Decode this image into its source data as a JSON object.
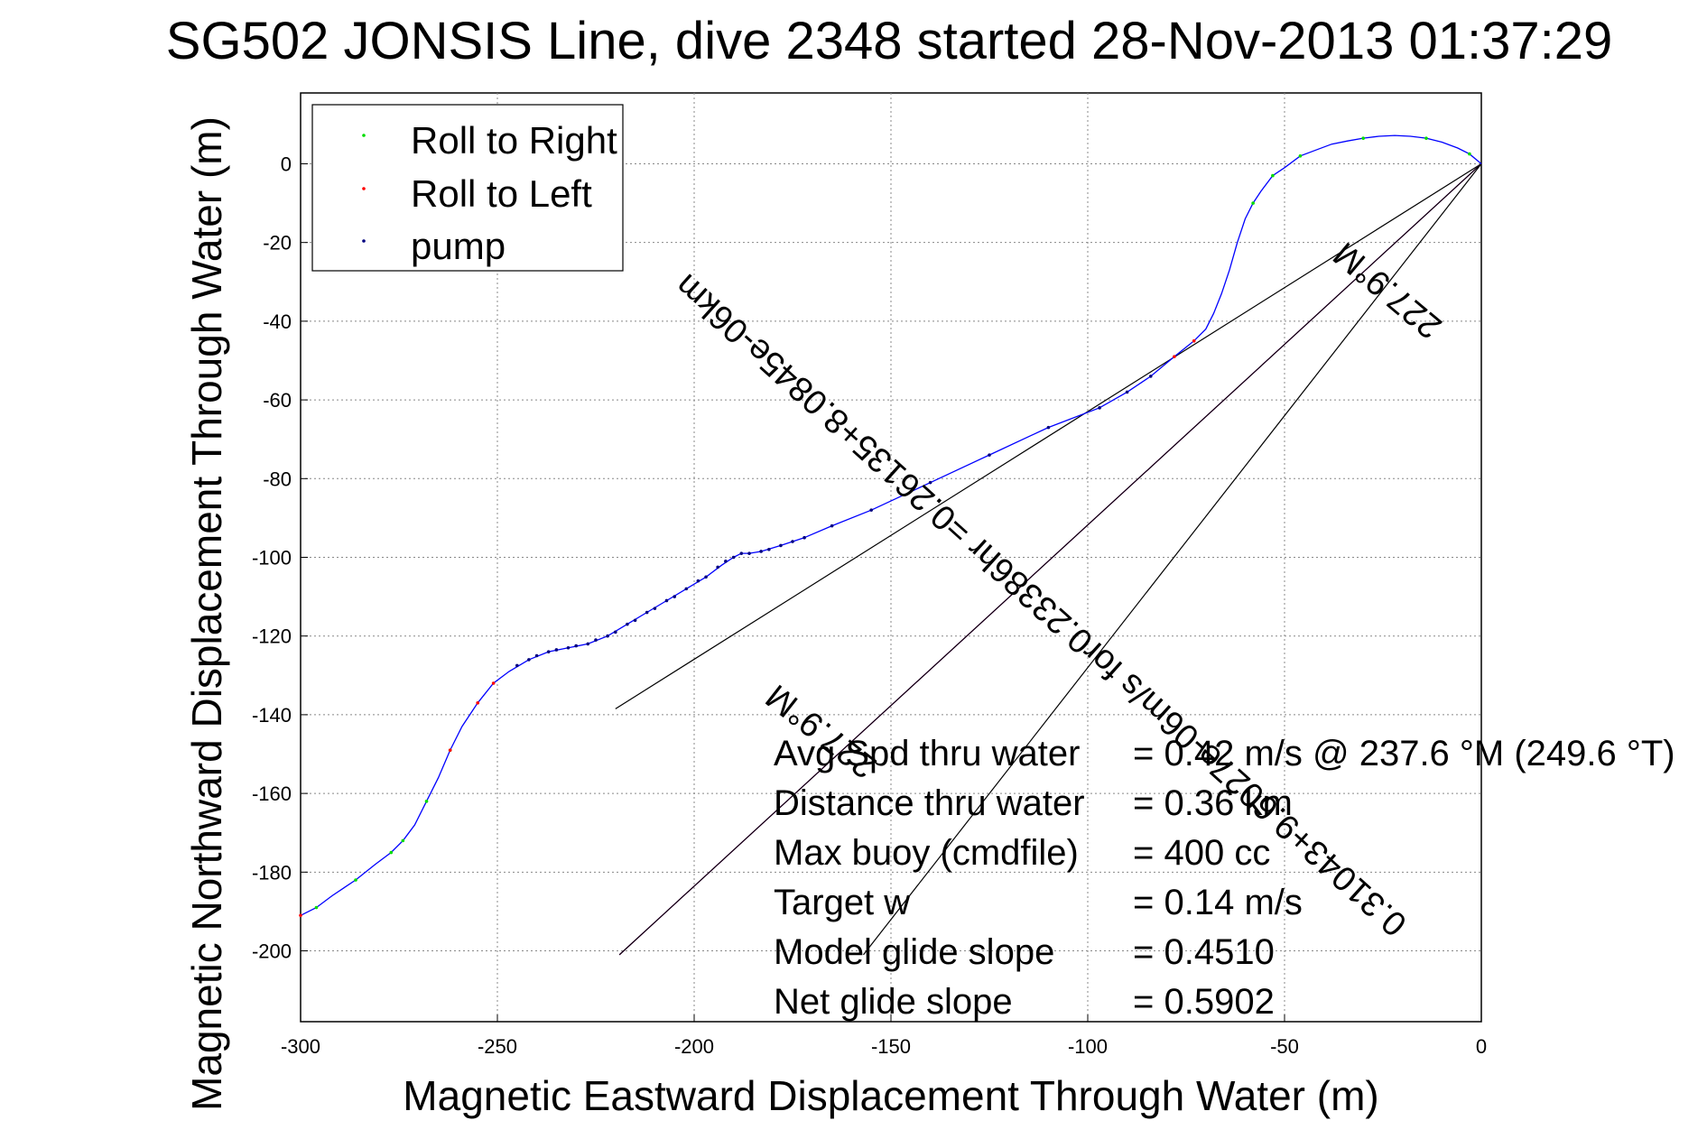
{
  "chart_data": {
    "type": "line",
    "title": "SG502 JONSIS Line, dive 2348 started 28-Nov-2013 01:37:29",
    "xlabel": "Magnetic Eastward Displacement Through Water (m)",
    "ylabel": "Magnetic Northward Displacement Through Water (m)",
    "xlim": [
      -300,
      0
    ],
    "ylim": [
      -218,
      18
    ],
    "xticks": [
      -300,
      -250,
      -200,
      -150,
      -100,
      -50,
      0
    ],
    "yticks": [
      0,
      -20,
      -40,
      -60,
      -80,
      -100,
      -120,
      -140,
      -160,
      -180,
      -200
    ],
    "grid": true,
    "legend": {
      "placement": "top-left",
      "entries": [
        {
          "label": "Roll to Right",
          "color": "#00dd00"
        },
        {
          "label": "Roll to Left",
          "color": "#ff0000"
        },
        {
          "label": "pump",
          "color": "#000080"
        }
      ]
    },
    "track": {
      "color": "#0000ff",
      "points": [
        [
          0,
          0
        ],
        [
          -3,
          2.5
        ],
        [
          -6,
          4
        ],
        [
          -10,
          5.5
        ],
        [
          -14,
          6.5
        ],
        [
          -18,
          7
        ],
        [
          -22,
          7.2
        ],
        [
          -26,
          7
        ],
        [
          -30,
          6.5
        ],
        [
          -34,
          5.8
        ],
        [
          -38,
          5
        ],
        [
          -42,
          3.5
        ],
        [
          -46,
          2
        ],
        [
          -50,
          -1
        ],
        [
          -53,
          -3
        ],
        [
          -56,
          -7
        ],
        [
          -58,
          -10
        ],
        [
          -60,
          -14
        ],
        [
          -62,
          -20
        ],
        [
          -64,
          -27
        ],
        [
          -66,
          -33
        ],
        [
          -68,
          -38
        ],
        [
          -70,
          -42
        ],
        [
          -73,
          -45
        ],
        [
          -78,
          -49
        ],
        [
          -84,
          -54
        ],
        [
          -90,
          -58
        ],
        [
          -97,
          -62
        ],
        [
          -110,
          -67
        ],
        [
          -125,
          -74
        ],
        [
          -140,
          -81
        ],
        [
          -155,
          -88
        ],
        [
          -165,
          -92
        ],
        [
          -172,
          -95
        ],
        [
          -178,
          -97
        ],
        [
          -183,
          -98.5
        ],
        [
          -186,
          -99
        ],
        [
          -188,
          -99
        ],
        [
          -190,
          -100
        ],
        [
          -193,
          -102
        ],
        [
          -197,
          -105
        ],
        [
          -202,
          -108
        ],
        [
          -207,
          -111
        ],
        [
          -212,
          -114
        ],
        [
          -217,
          -117
        ],
        [
          -222,
          -120
        ],
        [
          -227,
          -122
        ],
        [
          -232,
          -123
        ],
        [
          -237,
          -124
        ],
        [
          -242,
          -126
        ],
        [
          -247,
          -129
        ],
        [
          -251,
          -132
        ],
        [
          -255,
          -137
        ],
        [
          -259,
          -143
        ],
        [
          -262,
          -149
        ],
        [
          -265,
          -156
        ],
        [
          -268,
          -162
        ],
        [
          -271,
          -168
        ],
        [
          -274,
          -172
        ],
        [
          -277,
          -175
        ],
        [
          -281,
          -178
        ],
        [
          -286,
          -182
        ],
        [
          -292,
          -186
        ],
        [
          -296,
          -189
        ],
        [
          -300,
          -191
        ]
      ]
    },
    "markers": {
      "roll_right": [
        [
          -3,
          2.5
        ],
        [
          -14,
          6.5
        ],
        [
          -30,
          6.5
        ],
        [
          -46,
          2
        ],
        [
          -53,
          -3
        ],
        [
          -58,
          -10
        ],
        [
          -262,
          -149
        ],
        [
          -268,
          -162
        ],
        [
          -274,
          -172
        ],
        [
          -277,
          -175
        ],
        [
          -286,
          -182
        ],
        [
          -296,
          -189
        ]
      ],
      "roll_left": [
        [
          -73,
          -45
        ],
        [
          -78,
          -49
        ],
        [
          -251,
          -132
        ],
        [
          -255,
          -137
        ],
        [
          -262,
          -149
        ],
        [
          -300,
          -191
        ]
      ],
      "pump": [
        [
          -84,
          -54
        ],
        [
          -90,
          -58
        ],
        [
          -97,
          -62
        ],
        [
          -110,
          -67
        ],
        [
          -125,
          -74
        ],
        [
          -140,
          -81
        ],
        [
          -155,
          -88
        ],
        [
          -165,
          -92
        ],
        [
          -172,
          -95
        ],
        [
          -175,
          -96
        ],
        [
          -178,
          -97
        ],
        [
          -181,
          -98
        ],
        [
          -183,
          -98.5
        ],
        [
          -186,
          -99
        ],
        [
          -188,
          -99
        ],
        [
          -190,
          -100
        ],
        [
          -192,
          -101
        ],
        [
          -194,
          -102.5
        ],
        [
          -197,
          -105
        ],
        [
          -199,
          -106
        ],
        [
          -202,
          -108
        ],
        [
          -205,
          -110
        ],
        [
          -207,
          -111
        ],
        [
          -210,
          -113
        ],
        [
          -212,
          -114
        ],
        [
          -215,
          -116
        ],
        [
          -217,
          -117
        ],
        [
          -220,
          -119
        ],
        [
          -222,
          -120
        ],
        [
          -225,
          -121
        ],
        [
          -227,
          -122
        ],
        [
          -230,
          -122.5
        ],
        [
          -232,
          -123
        ],
        [
          -235,
          -123.5
        ],
        [
          -237,
          -124
        ],
        [
          -240,
          -125
        ],
        [
          -242,
          -126
        ],
        [
          -245,
          -127.5
        ]
      ]
    },
    "reference_lines": [
      {
        "from": [
          0,
          0
        ],
        "to": [
          -220,
          -138.5
        ],
        "color": "#000000"
      },
      {
        "from": [
          0,
          0
        ],
        "to": [
          -219,
          -201
        ],
        "color": "#ff00ff"
      },
      {
        "from": [
          0,
          0
        ],
        "to": [
          -219,
          -201
        ],
        "color": "#000000"
      },
      {
        "from": [
          0,
          0
        ],
        "to": [
          -157,
          -201
        ],
        "color": "#000000"
      }
    ],
    "rotated_labels": [
      {
        "text": "227.9°M",
        "at": [
          -22,
          -30
        ],
        "rotation": 40
      },
      {
        "text": "0.31043+9.6027e-06m/s for0.23386hr =0.26135+8.0845e-06km",
        "at": [
          -110,
          -110
        ],
        "rotation": 42
      },
      {
        "text": "227.9°M",
        "at": [
          -166,
          -142
        ],
        "rotation": 38
      }
    ],
    "annotations": [
      {
        "label": "Avg Spd thru water",
        "value": "=  0.42 m/s @ 237.6 °M (249.6 °T)"
      },
      {
        "label": "Distance thru water",
        "value": "=  0.36 km"
      },
      {
        "label": "Max buoy (cmdfile)",
        "value": "= 400 cc"
      },
      {
        "label": "Target w",
        "value": "= 0.14 m/s"
      },
      {
        "label": "Model glide slope",
        "value": "= 0.4510"
      },
      {
        "label": "Net glide slope",
        "value": "= 0.5902"
      }
    ]
  }
}
